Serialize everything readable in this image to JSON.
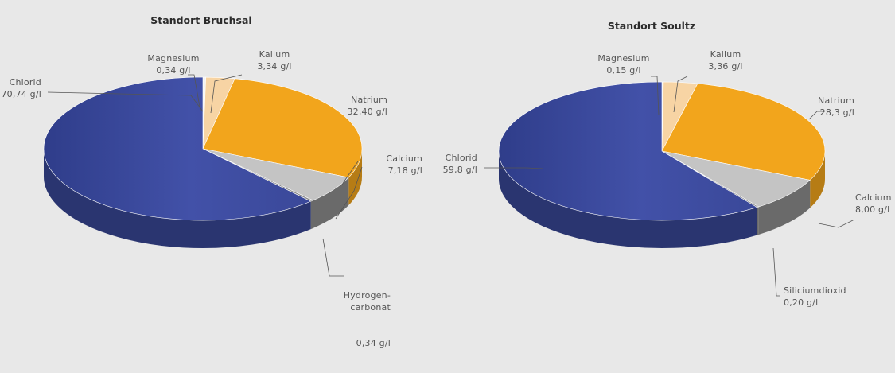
{
  "chart_data": [
    {
      "type": "pie",
      "title": "Standort Bruchsal",
      "slices": [
        {
          "name": "Chlorid",
          "value_label": "70,74 g/l",
          "value": 70.74,
          "color": "#3a4a9c"
        },
        {
          "name": "Magnesium",
          "value_label": "0,34 g/l",
          "value": 0.34,
          "color": "#f2f2f2"
        },
        {
          "name": "Kalium",
          "value_label": "3,34 g/l",
          "value": 3.34,
          "color": "#f7d4a4"
        },
        {
          "name": "Natrium",
          "value_label": "32,40 g/l",
          "value": 32.4,
          "color": "#f2a51c"
        },
        {
          "name": "Calcium",
          "value_label": "7,18 g/l",
          "value": 7.18,
          "color": "#c4c4c4"
        },
        {
          "name": "Hydrogen-\ncarbonat",
          "value_label": "0,34 g/l",
          "value": 0.34,
          "color": "#8a8a8a"
        }
      ]
    },
    {
      "type": "pie",
      "title": "Standort Soultz",
      "slices": [
        {
          "name": "Chlorid",
          "value_label": "59,8 g/l",
          "value": 59.8,
          "color": "#3a4a9c"
        },
        {
          "name": "Magnesium",
          "value_label": "0,15 g/l",
          "value": 0.15,
          "color": "#f2f2f2"
        },
        {
          "name": "Kalium",
          "value_label": "3,36 g/l",
          "value": 3.36,
          "color": "#f7d4a4"
        },
        {
          "name": "Natrium",
          "value_label": "28,3 g/l",
          "value": 28.3,
          "color": "#f2a51c"
        },
        {
          "name": "Calcium",
          "value_label": "8,00 g/l",
          "value": 8.0,
          "color": "#c4c4c4"
        },
        {
          "name": "Siliciumdioxid",
          "value_label": "0,20 g/l",
          "value": 0.2,
          "color": "#8a8a8a"
        }
      ]
    }
  ]
}
